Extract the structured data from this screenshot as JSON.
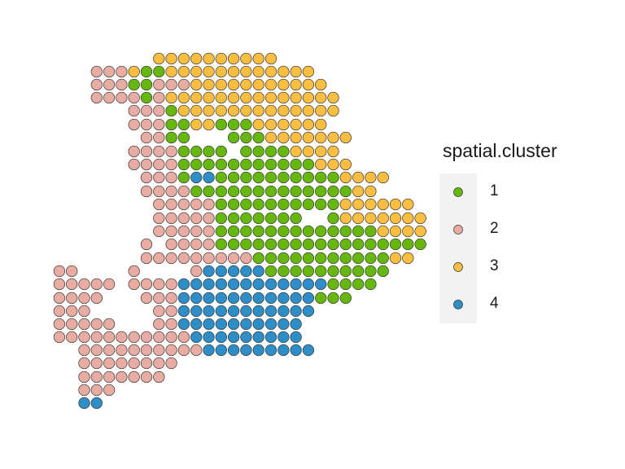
{
  "chart_data": {
    "type": "scatter",
    "legend_title": "spatial.cluster",
    "legend_position": "right",
    "grid": false,
    "clusters": [
      {
        "name": "1",
        "color": "#66b80f"
      },
      {
        "name": "2",
        "color": "#e8aca2"
      },
      {
        "name": "3",
        "color": "#fbbe41"
      },
      {
        "name": "4",
        "color": "#2e8ec7"
      }
    ],
    "rows": [
      [
        {
          "start": 11,
          "cells": "3333333333"
        }
      ],
      [
        {
          "start": 6,
          "cells": "222311333333333333"
        }
      ],
      [
        {
          "start": 6,
          "cells": "2221122233333333333"
        }
      ],
      [
        {
          "start": 6,
          "cells": "22221233333333333333"
        }
      ],
      [
        {
          "start": 9,
          "cells": "22213333333333333"
        }
      ],
      [
        {
          "start": 9,
          "cells": "2221133111333333"
        }
      ],
      [
        {
          "start": 10,
          "cells": "2211"
        },
        {
          "start": 17,
          "cells": "1113333333"
        }
      ],
      [
        {
          "start": 9,
          "cells": "22221111"
        },
        {
          "start": 18,
          "cells": "11113333"
        }
      ],
      [
        {
          "start": 9,
          "cells": "222211111111111333"
        }
      ],
      [
        {
          "start": 10,
          "cells": "22214411111111113333"
        }
      ],
      [
        {
          "start": 10,
          "cells": "2222111111111111133"
        }
      ],
      [
        {
          "start": 11,
          "cells": "222221111111111333333"
        }
      ],
      [
        {
          "start": 11,
          "cells": "222221111111"
        },
        {
          "start": 25,
          "cells": "133333333"
        }
      ],
      [
        {
          "start": 11,
          "cells": "22222111111111111133333"
        }
      ],
      [
        {
          "start": 10,
          "cells": "2"
        },
        {
          "start": 12,
          "cells": "22221111111111111111133"
        }
      ],
      [
        {
          "start": 10,
          "cells": "2222222221111111111133"
        }
      ],
      [
        {
          "start": 3,
          "cells": "22"
        },
        {
          "start": 9,
          "cells": "2"
        },
        {
          "start": 14,
          "cells": "2444441111111111"
        }
      ],
      [
        {
          "start": 3,
          "cells": "22222"
        },
        {
          "start": 9,
          "cells": "22224444444444441111"
        }
      ],
      [
        {
          "start": 3,
          "cells": "2222"
        },
        {
          "start": 10,
          "cells": "22244444444444111"
        }
      ],
      [
        {
          "start": 3,
          "cells": "222"
        },
        {
          "start": 11,
          "cells": "2244444444444"
        }
      ],
      [
        {
          "start": 3,
          "cells": "22222"
        },
        {
          "start": 11,
          "cells": "224444444444"
        }
      ],
      [
        {
          "start": 3,
          "cells": "22222222222444444444"
        }
      ],
      [
        {
          "start": 5,
          "cells": "2222222222444444444"
        }
      ],
      [
        {
          "start": 5,
          "cells": "2222222"
        },
        {
          "start": 12,
          "cells": "2"
        }
      ],
      [
        {
          "start": 5,
          "cells": "2222222"
        }
      ],
      [
        {
          "start": 5,
          "cells": "222"
        }
      ],
      [
        {
          "start": 5,
          "cells": "44"
        }
      ]
    ]
  }
}
